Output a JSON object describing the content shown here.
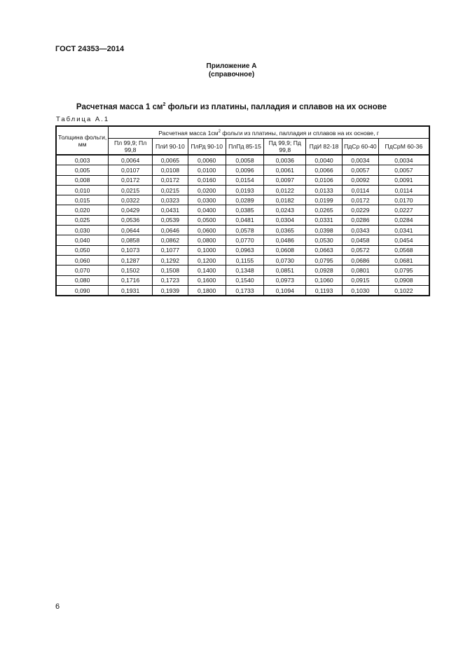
{
  "header": {
    "doc_id": "ГОСТ 24353—2014"
  },
  "appendix": {
    "title": "Приложение А",
    "subtitle": "(справочное)"
  },
  "table_title": {
    "before": "Расчетная масса 1 см",
    "sup": "2",
    "after": " фольги из платины, палладия и сплавов на их основе"
  },
  "table_label": "Таблица А.1",
  "table": {
    "thickness_header": "Толщина фольги, мм",
    "group_header": {
      "before": "Расчетная масса 1см",
      "sup": "2",
      "after": " фольги из платины, палладия и сплавов на их основе, г"
    },
    "columns": [
      "Пл 99,9; Пл 99,8",
      "ПлИ 90-10",
      "ПлРд 90-10",
      "ПлПд 85-15",
      "Пд 99,9; Пд 99,8",
      "ПдИ 82-18",
      "ПдСр 60-40",
      "ПдСрМ 60-36"
    ],
    "rows": [
      [
        "0,003",
        "0,0064",
        "0,0065",
        "0,0060",
        "0,0058",
        "0,0036",
        "0,0040",
        "0,0034",
        "0,0034"
      ],
      [
        "0,005",
        "0,0107",
        "0,0108",
        "0,0100",
        "0,0096",
        "0,0061",
        "0,0066",
        "0,0057",
        "0,0057"
      ],
      [
        "0,008",
        "0,0172",
        "0,0172",
        "0,0160",
        "0,0154",
        "0,0097",
        "0,0106",
        "0,0092",
        "0,0091"
      ],
      [
        "0,010",
        "0,0215",
        "0,0215",
        "0,0200",
        "0,0193",
        "0,0122",
        "0,0133",
        "0,0114",
        "0,0114"
      ],
      [
        "0,015",
        "0,0322",
        "0,0323",
        "0,0300",
        "0,0289",
        "0,0182",
        "0,0199",
        "0,0172",
        "0,0170"
      ],
      [
        "0,020",
        "0,0429",
        "0,0431",
        "0,0400",
        "0,0385",
        "0,0243",
        "0,0265",
        "0,0229",
        "0,0227"
      ],
      [
        "0,025",
        "0,0536",
        "0,0539",
        "0,0500",
        "0,0481",
        "0,0304",
        "0,0331",
        "0,0286",
        "0,0284"
      ],
      [
        "0,030",
        "0,0644",
        "0,0646",
        "0,0600",
        "0,0578",
        "0,0365",
        "0,0398",
        "0,0343",
        "0,0341"
      ],
      [
        "0,040",
        "0,0858",
        "0,0862",
        "0,0800",
        "0,0770",
        "0,0486",
        "0,0530",
        "0,0458",
        "0,0454"
      ],
      [
        "0,050",
        "0,1073",
        "0,1077",
        "0,1000",
        "0,0963",
        "0,0608",
        "0,0663",
        "0,0572",
        "0,0568"
      ],
      [
        "0,060",
        "0,1287",
        "0,1292",
        "0,1200",
        "0,1155",
        "0,0730",
        "0,0795",
        "0,0686",
        "0,0681"
      ],
      [
        "0,070",
        "0,1502",
        "0,1508",
        "0,1400",
        "0,1348",
        "0,0851",
        "0,0928",
        "0,0801",
        "0,0795"
      ],
      [
        "0,080",
        "0,1716",
        "0,1723",
        "0,1600",
        "0,1540",
        "0,0973",
        "0,1060",
        "0,0915",
        "0,0908"
      ],
      [
        "0,090",
        "0,1931",
        "0,1939",
        "0,1800",
        "0,1733",
        "0,1094",
        "0,1193",
        "0,1030",
        "0,1022"
      ]
    ]
  },
  "page_number": "6"
}
